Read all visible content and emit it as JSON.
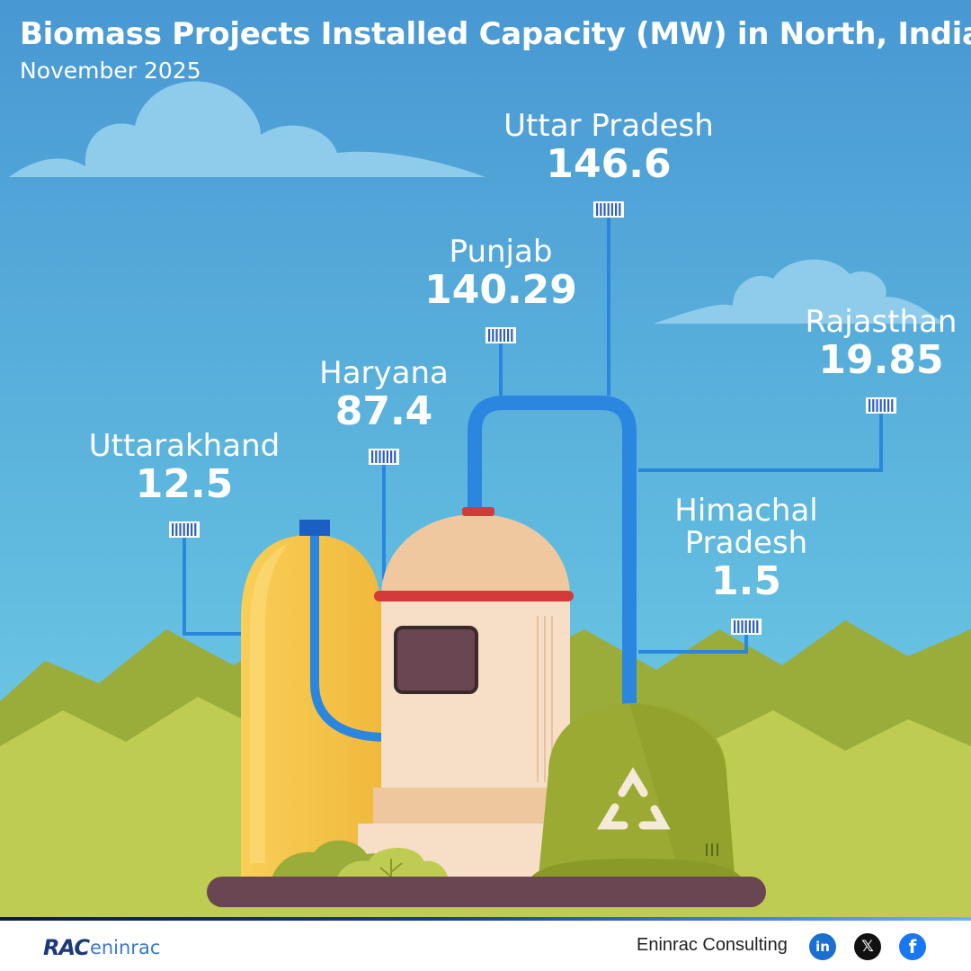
{
  "title": "Biomass Projects Installed Capacity (MW) in North, India",
  "subtitle": "November 2025",
  "chart_data": {
    "type": "bar",
    "title": "Biomass Projects Installed Capacity (MW) in North, India",
    "subtitle": "November 2025",
    "categories": [
      "Uttarakhand",
      "Haryana",
      "Punjab",
      "Uttar Pradesh",
      "Rajasthan",
      "Himachal Pradesh"
    ],
    "values": [
      12.5,
      87.4,
      140.29,
      146.6,
      19.85,
      1.5
    ],
    "value_labels": [
      "12.5",
      "87.4",
      "140.29",
      "146.6",
      "19.85",
      "1.5"
    ],
    "category_lines": [
      [
        "Uttarakhand"
      ],
      [
        "Haryana"
      ],
      [
        "Punjab"
      ],
      [
        "Uttar Pradesh"
      ],
      [
        "Rajasthan"
      ],
      [
        "Himachal",
        "Pradesh"
      ]
    ]
  },
  "colors": {
    "sky_top": "#4a9fd6",
    "sky_bottom": "#6cc7e2",
    "pipe": "#2b86e0",
    "hill_dark": "#9aac3a",
    "hill_light": "#bfcc52",
    "yellow_tank": "#f6c44a",
    "dome": "#f0c8a0",
    "band": "#d33a3a",
    "bin": "#9aaa32"
  },
  "icons": [
    "recycle-icon",
    "linkedin-icon",
    "x-icon",
    "facebook-icon"
  ],
  "footer": {
    "logo_rac": "RAC",
    "logo_word": "eninrac",
    "brand": "Eninrac Consulting",
    "linkedin": "in",
    "x": "𝕏",
    "facebook": "f"
  }
}
